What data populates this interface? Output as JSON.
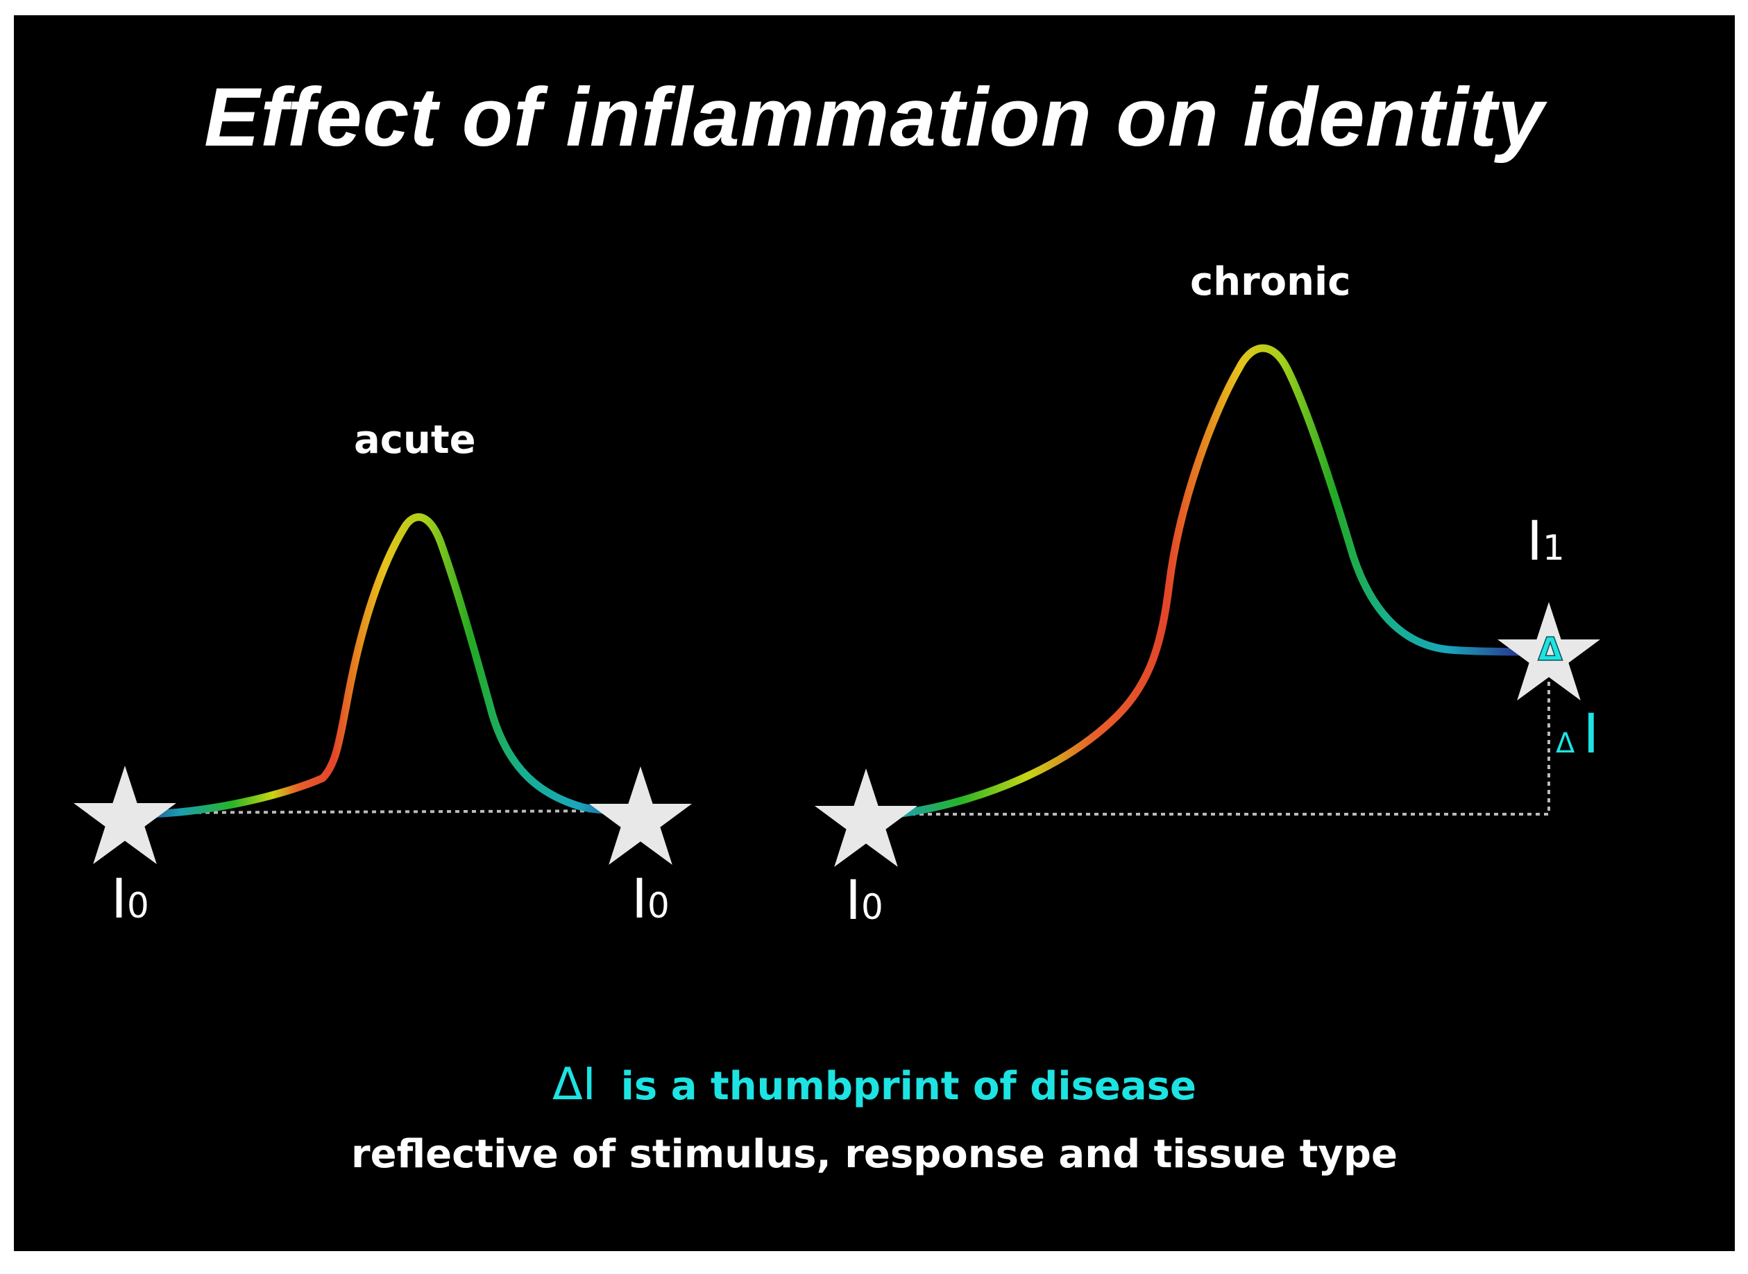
{
  "title": "Effect of inflammation on identity",
  "panels": {
    "acute": {
      "label": "acute",
      "start_label": {
        "main": "I",
        "sub": "0"
      },
      "end_label": {
        "main": "I",
        "sub": "0"
      }
    },
    "chronic": {
      "label": "chronic",
      "start_label": {
        "main": "I",
        "sub": "0"
      },
      "end_label": {
        "main": "I",
        "sub": "1"
      },
      "delta_label": {
        "delta": "Δ",
        "symbol": "I"
      },
      "star_marker": "Δ"
    }
  },
  "footer": {
    "delta_symbol": "ΔI",
    "thumbprint_text": "is a thumbprint of disease",
    "reflective_text": "reflective of stimulus, response and tissue type"
  },
  "colors": {
    "background": "#000000",
    "text": "#ffffff",
    "accent_cyan": "#1de3e3",
    "star": "#e8e8e8",
    "baseline": "#bbbbbb"
  },
  "icons": [
    "star-icon",
    "delta-icon"
  ]
}
